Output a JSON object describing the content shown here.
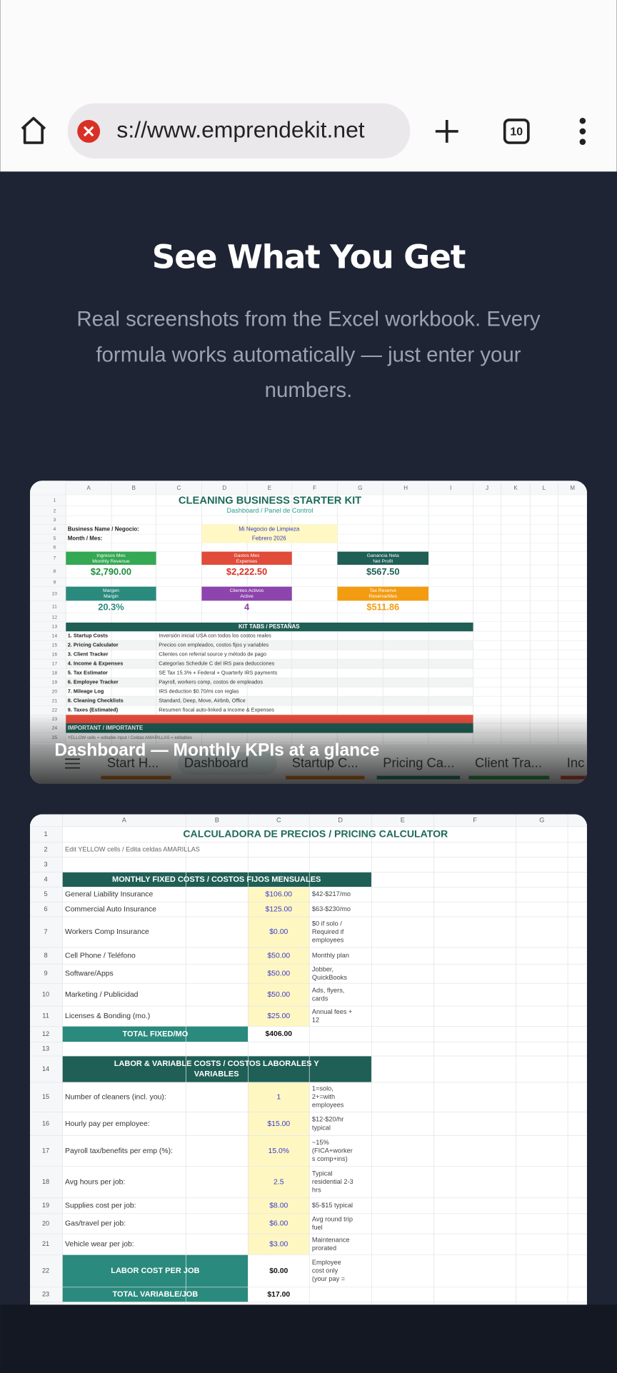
{
  "browser": {
    "url": "s://www.emprendekit.net",
    "tab_count": "10"
  },
  "section": {
    "title": "See What You Get",
    "subtitle_lines": [
      "Real screenshots from the Excel workbook. Every",
      "formula works automatically — just enter your",
      "numbers."
    ]
  },
  "cards": [
    {
      "caption": "Dashboard — Monthly KPIs at a glance",
      "sheet": {
        "columns": [
          "A",
          "B",
          "C",
          "D",
          "E",
          "F",
          "G",
          "H",
          "I",
          "J",
          "K",
          "L",
          "M"
        ],
        "row_numbers": [
          "1",
          "2",
          "3",
          "4",
          "5",
          "6",
          "7",
          "8",
          "9",
          "10",
          "11",
          "12",
          "13",
          "14",
          "15",
          "16",
          "17",
          "18",
          "19",
          "20",
          "21",
          "22",
          "23",
          "24",
          "25"
        ],
        "title": "CLEANING BUSINESS STARTER KIT",
        "subtitle": "Dashboard / Panel de Control",
        "fields": [
          {
            "label": "Business Name / Negocio:",
            "value": "Mi Negocio de Limpieza"
          },
          {
            "label": "Month / Mes:",
            "value": "Febrero 2026"
          }
        ],
        "kpis": [
          {
            "label": "Ingresos Mes",
            "sublabel": "Monthly Revenue",
            "value": "$2,790.00",
            "color": "#34a853",
            "text_color": "#1e8e3e"
          },
          {
            "label": "Gastos Mes",
            "sublabel": "Expenses",
            "value": "$2,222.50",
            "color": "#e04b3a",
            "text_color": "#d93025"
          },
          {
            "label": "Ganancia Neta",
            "sublabel": "Net Profit",
            "value": "$567.50",
            "color": "#1f5f55",
            "text_color": "#1f5f55"
          },
          {
            "label": "Margen",
            "sublabel": "Margin",
            "value": "20.3%",
            "color": "#2b8a7e",
            "text_color": "#2b8a7e"
          },
          {
            "label": "Clientes Activos",
            "sublabel": "Active",
            "value": "4",
            "color": "#8e44ad",
            "text_color": "#8e44ad"
          },
          {
            "label": "Tax Reserve",
            "sublabel": "Reserva/Mes",
            "value": "$511.86",
            "color": "#f39c12",
            "text_color": "#f39c12"
          }
        ],
        "section": "KIT TABS / PESTAÑAS",
        "tabs_list": [
          {
            "name": "1. Startup Costs",
            "desc": "Inversión inicial USA con todos los costos reales"
          },
          {
            "name": "2. Pricing Calculator",
            "desc": "Precios con empleados, costos fijos y variables"
          },
          {
            "name": "3. Client Tracker",
            "desc": "Clientes con referral source y método de pago"
          },
          {
            "name": "4. Income & Expenses",
            "desc": "Categorías Schedule C del IRS para deducciones"
          },
          {
            "name": "5. Tax Estimator",
            "desc": "SE Tax 15.3% + Federal + Quarterly IRS payments"
          },
          {
            "name": "6. Employee Tracker",
            "desc": "Payroll, workers comp, costos de empleados"
          },
          {
            "name": "7. Mileage Log",
            "desc": "IRS deduction $0.70/mi con reglas"
          },
          {
            "name": "8. Cleaning Checklists",
            "desc": "Standard, Deep, Move, Airbnb, Office"
          },
          {
            "name": "9. Taxes (Estimated)",
            "desc": "Resumen fiscal auto-linked a Income & Expenses"
          }
        ],
        "important": "IMPORTANT / IMPORTANTE",
        "note": "YELLOW cells = editable input / Celdas AMARILLAS = editables"
      },
      "tabs": [
        {
          "label": "Start H...",
          "color": "#e67e22"
        },
        {
          "label": "Dashboard",
          "selected": true
        },
        {
          "label": "Startup C...",
          "color": "#e67e22"
        },
        {
          "label": "Pricing Ca...",
          "color": "#2a8a7d"
        },
        {
          "label": "Client Tra...",
          "color": "#34a853"
        },
        {
          "label": "Inc",
          "color": "#e04b3a"
        }
      ]
    },
    {
      "sheet": {
        "columns": [
          "A",
          "B",
          "C",
          "D",
          "E",
          "F",
          "G"
        ],
        "rows": [
          {
            "num": "1",
            "label": "CALCULADORA DE PRECIOS / PRICING CALCULATOR"
          },
          {
            "num": "2",
            "label": "Edit YELLOW cells / Edita celdas AMARILLAS"
          },
          {
            "num": "3"
          },
          {
            "num": "4",
            "label": [
              "MONTHLY FIXED COSTS / COSTOS FIJOS MENSUALES"
            ]
          },
          {
            "num": "5",
            "label": "General Liability Insurance",
            "value": "$106.00",
            "note": [
              "$42-$217/mo"
            ]
          },
          {
            "num": "6",
            "label": "Commercial Auto Insurance",
            "value": "$125.00",
            "note": [
              "$63-$230/mo"
            ]
          },
          {
            "num": "7",
            "label": "Workers Comp Insurance",
            "value": "$0.00",
            "note": [
              "$0 if solo /",
              "Required if",
              "employees"
            ]
          },
          {
            "num": "8",
            "label": "Cell Phone / Teléfono",
            "value": "$50.00",
            "note": [
              "Monthly plan"
            ]
          },
          {
            "num": "9",
            "label": "Software/Apps",
            "value": "$50.00",
            "note": [
              "Jobber,",
              "QuickBooks"
            ]
          },
          {
            "num": "10",
            "label": "Marketing / Publicidad",
            "value": "$50.00",
            "note": [
              "Ads, flyers,",
              "cards"
            ]
          },
          {
            "num": "11",
            "label": "Licenses & Bonding (mo.)",
            "value": "$25.00",
            "note": [
              "Annual fees +",
              "12"
            ]
          },
          {
            "num": "12",
            "label": "TOTAL FIXED/MO",
            "value": "$406.00"
          },
          {
            "num": "13"
          },
          {
            "num": "14",
            "label": [
              "LABOR & VARIABLE COSTS / COSTOS LABORALES Y",
              "VARIABLES"
            ]
          },
          {
            "num": "15",
            "label": "Number of cleaners (incl. you):",
            "value": "1",
            "note": [
              "1=solo,",
              "2+=with",
              "employees"
            ]
          },
          {
            "num": "16",
            "label": "Hourly pay per employee:",
            "value": "$15.00",
            "note": [
              "$12-$20/hr",
              "typical"
            ]
          },
          {
            "num": "17",
            "label": "Payroll tax/benefits per emp (%):",
            "value": "15.0%",
            "note": [
              "~15%",
              "(FICA+worker",
              "s comp+ins)"
            ]
          },
          {
            "num": "18",
            "label": "Avg hours per job:",
            "value": "2.5",
            "note": [
              "Typical",
              "residential 2-3",
              "hrs"
            ]
          },
          {
            "num": "19",
            "label": "Supplies cost per job:",
            "value": "$8.00",
            "note": [
              "$5-$15 typical"
            ]
          },
          {
            "num": "20",
            "label": "Gas/travel per job:",
            "value": "$6.00",
            "note": [
              "Avg round trip",
              "fuel"
            ]
          },
          {
            "num": "21",
            "label": "Vehicle wear per job:",
            "value": "$3.00",
            "note": [
              "Maintenance",
              "prorated"
            ]
          },
          {
            "num": "22",
            "label": "LABOR COST PER JOB",
            "value": "$0.00",
            "note": [
              "Employee",
              "cost only",
              "(your pay ="
            ]
          },
          {
            "num": "23",
            "label": "TOTAL VARIABLE/JOB",
            "value": "$17.00"
          }
        ]
      }
    }
  ]
}
